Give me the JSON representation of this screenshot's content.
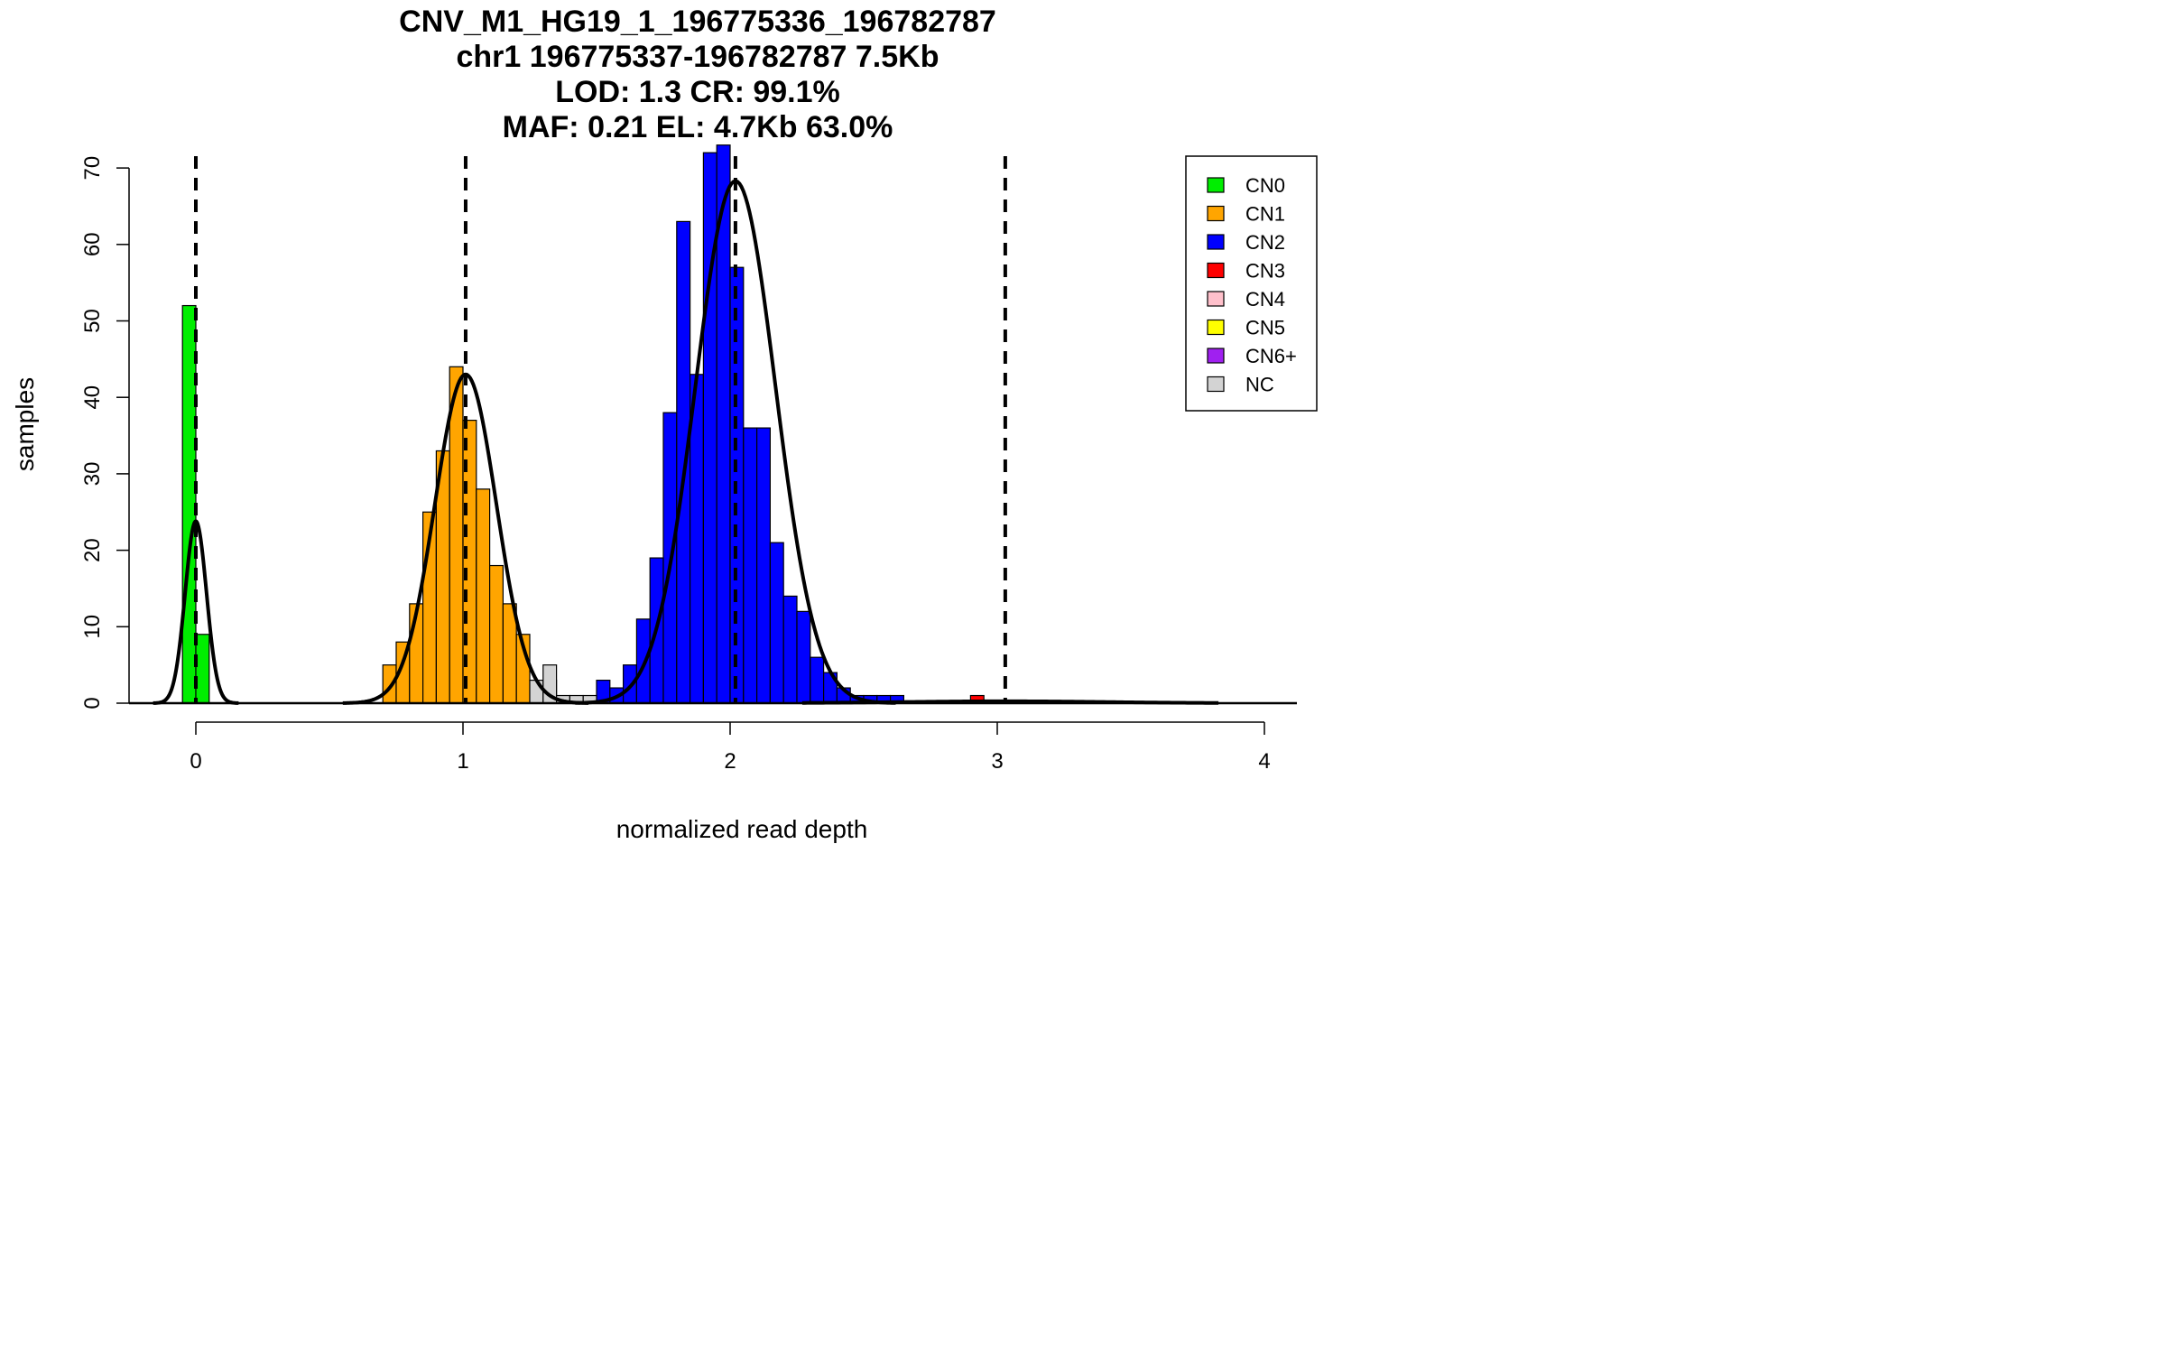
{
  "chart_data": {
    "type": "bar",
    "title_lines": [
      "CNV_M1_HG19_1_196775336_196782787",
      "chr1 196775337-196782787 7.5Kb",
      "LOD: 1.3 CR: 99.1%",
      "MAF: 0.21 EL: 4.7Kb 63.0%"
    ],
    "xlabel": "normalized read depth",
    "ylabel": "samples",
    "xlim": [
      -0.19,
      4.12
    ],
    "ylim": [
      0,
      72
    ],
    "x_ticks": [
      "0",
      "1",
      "2",
      "3",
      "4"
    ],
    "x_tick_values": [
      0,
      1,
      2,
      3,
      4
    ],
    "y_ticks": [
      "0",
      "10",
      "20",
      "30",
      "40",
      "50",
      "60",
      "70"
    ],
    "y_tick_values": [
      0,
      10,
      20,
      30,
      40,
      50,
      60,
      70
    ],
    "bin_width": 0.05,
    "series": [
      {
        "name": "CN0",
        "color": "#00ee00",
        "bins": [
          [
            -0.025,
            52
          ],
          [
            0.025,
            9
          ]
        ]
      },
      {
        "name": "CN1",
        "color": "#ffa500",
        "bins": [
          [
            0.725,
            5
          ],
          [
            0.775,
            8
          ],
          [
            0.825,
            13
          ],
          [
            0.875,
            25
          ],
          [
            0.925,
            33
          ],
          [
            0.975,
            44
          ],
          [
            1.025,
            37
          ],
          [
            1.075,
            28
          ],
          [
            1.125,
            18
          ],
          [
            1.175,
            13
          ],
          [
            1.225,
            9
          ],
          [
            1.325,
            3
          ]
        ]
      },
      {
        "name": "CN2",
        "color": "#0000ff",
        "bins": [
          [
            1.525,
            3
          ],
          [
            1.575,
            2
          ],
          [
            1.625,
            5
          ],
          [
            1.675,
            11
          ],
          [
            1.725,
            19
          ],
          [
            1.775,
            38
          ],
          [
            1.825,
            63
          ],
          [
            1.875,
            43
          ],
          [
            1.925,
            72
          ],
          [
            1.975,
            73
          ],
          [
            2.025,
            57
          ],
          [
            2.075,
            36
          ],
          [
            2.125,
            36
          ],
          [
            2.175,
            21
          ],
          [
            2.225,
            14
          ],
          [
            2.275,
            12
          ],
          [
            2.325,
            6
          ],
          [
            2.375,
            4
          ],
          [
            2.425,
            2
          ],
          [
            2.475,
            1
          ],
          [
            2.525,
            1
          ],
          [
            2.575,
            1
          ],
          [
            2.625,
            1
          ]
        ]
      },
      {
        "name": "CN3",
        "color": "#ff0000",
        "bins": [
          [
            2.925,
            1
          ]
        ]
      },
      {
        "name": "CN4",
        "color": "#ffc0cb",
        "bins": []
      },
      {
        "name": "CN5",
        "color": "#ffff00",
        "bins": []
      },
      {
        "name": "CN6+",
        "color": "#a020f0",
        "bins": []
      },
      {
        "name": "NC",
        "color": "#d3d3d3",
        "bins": [
          [
            1.275,
            3
          ],
          [
            1.325,
            5
          ],
          [
            1.375,
            1
          ],
          [
            1.425,
            1
          ],
          [
            1.475,
            1
          ]
        ]
      }
    ],
    "fit_curves": [
      {
        "mean": 0.0,
        "sd": 0.04,
        "peak": 23.8
      },
      {
        "mean": 1.01,
        "sd": 0.115,
        "peak": 43.0
      },
      {
        "mean": 2.02,
        "sd": 0.15,
        "peak": 68.3
      },
      {
        "mean": 3.03,
        "sd": 0.38,
        "peak": 0.25
      }
    ],
    "dashed_lines_x": [
      0.0,
      1.01,
      2.02,
      3.03
    ],
    "legend_placement": "top-right"
  }
}
